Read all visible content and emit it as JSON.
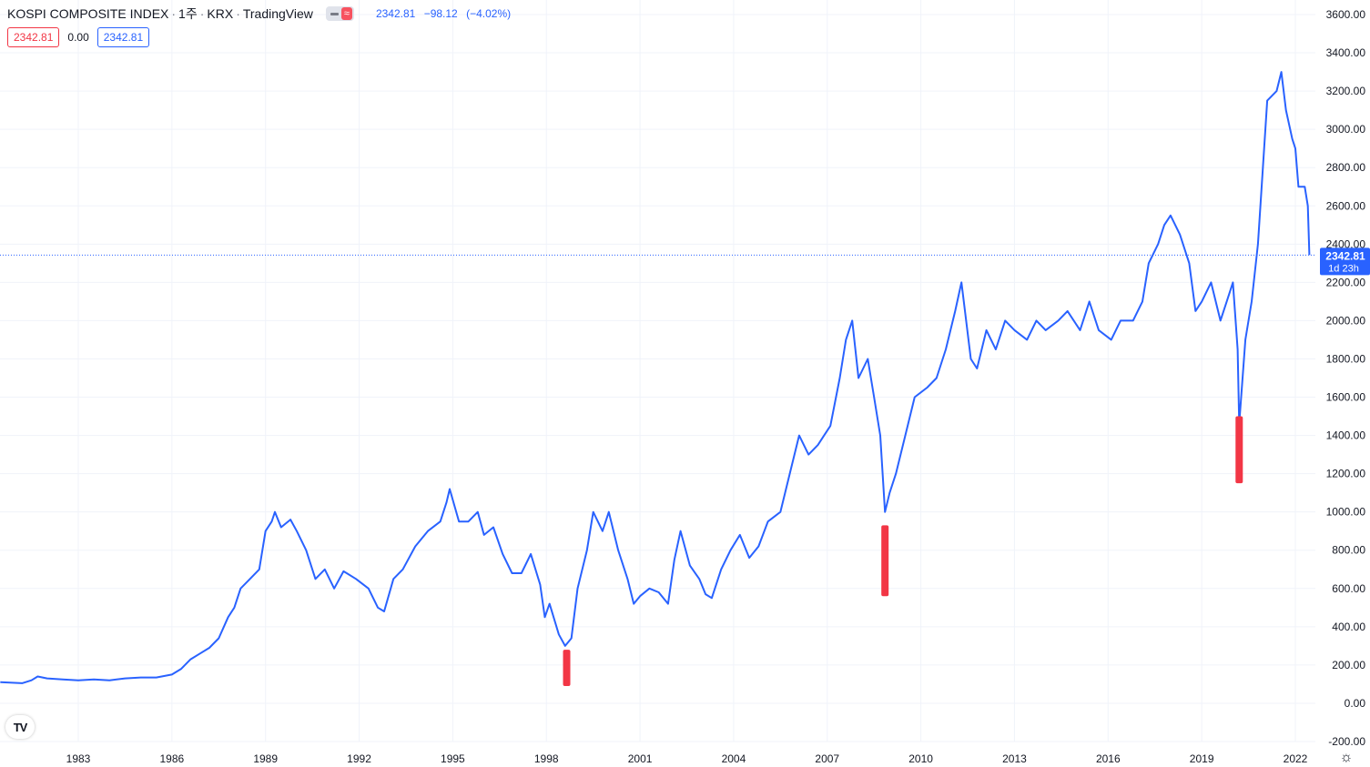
{
  "header": {
    "symbol": "KOSPI COMPOSITE INDEX",
    "interval": "1주",
    "exchange": "KRX",
    "source": "TradingView",
    "quote": {
      "price": "2342.81",
      "change": "−98.12",
      "change_pct": "(−4.02%)"
    },
    "dash_icon": "minus-icon",
    "wave_icon": "approx-icon",
    "wave_glyph": "≈"
  },
  "inputs": {
    "left": "2342.81",
    "mid": "0.00",
    "right": "2342.81"
  },
  "price_label": {
    "value": "2342.81",
    "countdown": "1d 23h"
  },
  "colors": {
    "line": "#2962ff",
    "marker": "#f23645",
    "grid": "#f0f3fa",
    "text": "#131722",
    "last_price_bg": "#2962ff"
  },
  "chart_data": {
    "type": "line",
    "title": "KOSPI COMPOSITE INDEX · 1주 · KRX · TradingView",
    "xlabel": "",
    "ylabel": "",
    "ylim": [
      -200,
      3600
    ],
    "xlim": [
      1980.5,
      2022.9
    ],
    "grid": true,
    "y_ticks": [
      "3600.00",
      "3400.00",
      "3200.00",
      "3000.00",
      "2800.00",
      "2600.00",
      "2400.00",
      "2200.00",
      "2000.00",
      "1800.00",
      "1600.00",
      "1400.00",
      "1200.00",
      "1000.00",
      "800.00",
      "600.00",
      "400.00",
      "200.00",
      "0.00",
      "-200.00"
    ],
    "x_ticks": [
      "1983",
      "1986",
      "1989",
      "1992",
      "1995",
      "1998",
      "2001",
      "2004",
      "2007",
      "2010",
      "2013",
      "2016",
      "2019",
      "2022"
    ],
    "last_price": 2342.81,
    "series": [
      {
        "values": [
          [
            1980.5,
            110
          ],
          [
            1981.2,
            105
          ],
          [
            1981.5,
            120
          ],
          [
            1981.7,
            140
          ],
          [
            1982.0,
            130
          ],
          [
            1982.5,
            125
          ],
          [
            1983.0,
            120
          ],
          [
            1983.5,
            125
          ],
          [
            1984.0,
            120
          ],
          [
            1984.5,
            130
          ],
          [
            1985.0,
            135
          ],
          [
            1985.5,
            135
          ],
          [
            1986.0,
            150
          ],
          [
            1986.3,
            180
          ],
          [
            1986.6,
            230
          ],
          [
            1986.9,
            260
          ],
          [
            1987.2,
            290
          ],
          [
            1987.5,
            340
          ],
          [
            1987.8,
            450
          ],
          [
            1988.0,
            500
          ],
          [
            1988.2,
            600
          ],
          [
            1988.5,
            650
          ],
          [
            1988.8,
            700
          ],
          [
            1989.0,
            900
          ],
          [
            1989.2,
            950
          ],
          [
            1989.3,
            1000
          ],
          [
            1989.5,
            920
          ],
          [
            1989.8,
            960
          ],
          [
            1990.0,
            900
          ],
          [
            1990.3,
            800
          ],
          [
            1990.6,
            650
          ],
          [
            1990.9,
            700
          ],
          [
            1991.2,
            600
          ],
          [
            1991.5,
            690
          ],
          [
            1991.9,
            650
          ],
          [
            1992.3,
            600
          ],
          [
            1992.6,
            500
          ],
          [
            1992.8,
            480
          ],
          [
            1993.1,
            650
          ],
          [
            1993.4,
            700
          ],
          [
            1993.8,
            820
          ],
          [
            1994.2,
            900
          ],
          [
            1994.6,
            950
          ],
          [
            1994.8,
            1050
          ],
          [
            1994.9,
            1120
          ],
          [
            1995.2,
            950
          ],
          [
            1995.5,
            950
          ],
          [
            1995.8,
            1000
          ],
          [
            1996.0,
            880
          ],
          [
            1996.3,
            920
          ],
          [
            1996.6,
            780
          ],
          [
            1996.9,
            680
          ],
          [
            1997.2,
            680
          ],
          [
            1997.5,
            780
          ],
          [
            1997.8,
            620
          ],
          [
            1997.95,
            450
          ],
          [
            1998.1,
            520
          ],
          [
            1998.4,
            360
          ],
          [
            1998.6,
            300
          ],
          [
            1998.8,
            340
          ],
          [
            1999.0,
            600
          ],
          [
            1999.3,
            800
          ],
          [
            1999.5,
            1000
          ],
          [
            1999.8,
            900
          ],
          [
            2000.0,
            1000
          ],
          [
            2000.3,
            800
          ],
          [
            2000.6,
            650
          ],
          [
            2000.8,
            520
          ],
          [
            2001.0,
            560
          ],
          [
            2001.3,
            600
          ],
          [
            2001.6,
            580
          ],
          [
            2001.9,
            520
          ],
          [
            2002.1,
            750
          ],
          [
            2002.3,
            900
          ],
          [
            2002.6,
            720
          ],
          [
            2002.9,
            650
          ],
          [
            2003.1,
            570
          ],
          [
            2003.3,
            550
          ],
          [
            2003.6,
            700
          ],
          [
            2003.9,
            800
          ],
          [
            2004.2,
            880
          ],
          [
            2004.5,
            760
          ],
          [
            2004.8,
            820
          ],
          [
            2005.1,
            950
          ],
          [
            2005.5,
            1000
          ],
          [
            2005.8,
            1200
          ],
          [
            2006.1,
            1400
          ],
          [
            2006.4,
            1300
          ],
          [
            2006.7,
            1350
          ],
          [
            2006.9,
            1400
          ],
          [
            2007.1,
            1450
          ],
          [
            2007.4,
            1700
          ],
          [
            2007.6,
            1900
          ],
          [
            2007.8,
            2000
          ],
          [
            2008.0,
            1700
          ],
          [
            2008.3,
            1800
          ],
          [
            2008.5,
            1600
          ],
          [
            2008.7,
            1400
          ],
          [
            2008.85,
            1000
          ],
          [
            2009.0,
            1100
          ],
          [
            2009.2,
            1200
          ],
          [
            2009.5,
            1400
          ],
          [
            2009.8,
            1600
          ],
          [
            2010.2,
            1650
          ],
          [
            2010.5,
            1700
          ],
          [
            2010.8,
            1850
          ],
          [
            2011.1,
            2050
          ],
          [
            2011.3,
            2200
          ],
          [
            2011.6,
            1800
          ],
          [
            2011.8,
            1750
          ],
          [
            2012.1,
            1950
          ],
          [
            2012.4,
            1850
          ],
          [
            2012.7,
            2000
          ],
          [
            2013.0,
            1950
          ],
          [
            2013.4,
            1900
          ],
          [
            2013.7,
            2000
          ],
          [
            2014.0,
            1950
          ],
          [
            2014.4,
            2000
          ],
          [
            2014.7,
            2050
          ],
          [
            2015.1,
            1950
          ],
          [
            2015.4,
            2100
          ],
          [
            2015.7,
            1950
          ],
          [
            2016.1,
            1900
          ],
          [
            2016.4,
            2000
          ],
          [
            2016.8,
            2000
          ],
          [
            2017.1,
            2100
          ],
          [
            2017.3,
            2300
          ],
          [
            2017.6,
            2400
          ],
          [
            2017.8,
            2500
          ],
          [
            2018.0,
            2550
          ],
          [
            2018.3,
            2450
          ],
          [
            2018.6,
            2300
          ],
          [
            2018.8,
            2050
          ],
          [
            2019.0,
            2100
          ],
          [
            2019.3,
            2200
          ],
          [
            2019.6,
            2000
          ],
          [
            2019.8,
            2100
          ],
          [
            2020.0,
            2200
          ],
          [
            2020.15,
            1850
          ],
          [
            2020.2,
            1460
          ],
          [
            2020.4,
            1900
          ],
          [
            2020.6,
            2100
          ],
          [
            2020.8,
            2400
          ],
          [
            2021.0,
            2900
          ],
          [
            2021.1,
            3150
          ],
          [
            2021.4,
            3200
          ],
          [
            2021.55,
            3300
          ],
          [
            2021.7,
            3100
          ],
          [
            2021.9,
            2950
          ],
          [
            2022.0,
            2900
          ],
          [
            2022.1,
            2700
          ],
          [
            2022.3,
            2700
          ],
          [
            2022.4,
            2600
          ],
          [
            2022.45,
            2342.81
          ]
        ]
      }
    ],
    "markers": [
      {
        "x": 1998.65,
        "from": 280,
        "to": 90
      },
      {
        "x": 2008.85,
        "from": 930,
        "to": 560
      },
      {
        "x": 2020.2,
        "from": 1500,
        "to": 1150
      }
    ]
  }
}
